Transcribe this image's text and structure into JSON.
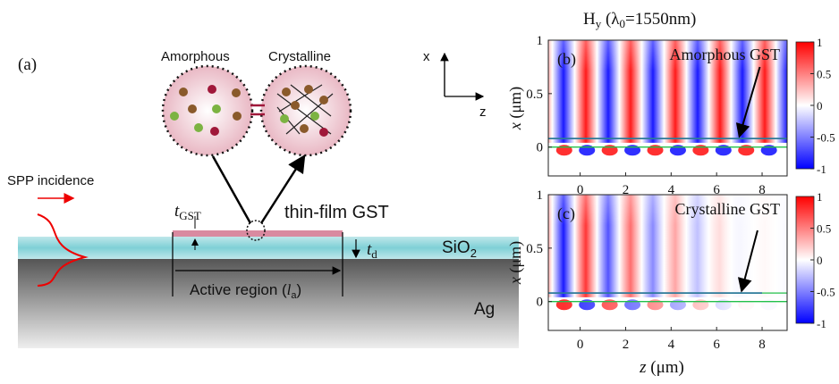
{
  "schematic": {
    "panel_label": "(a)",
    "amorphous": "Amorphous",
    "crystalline": "Crystalline",
    "axis_x": "x",
    "axis_z": "z",
    "spp": "SPP incidence",
    "t_gst": "t",
    "t_gst_sub": "GST",
    "thin_film": "thin-film GST",
    "t_d": "t",
    "t_d_sub": "d",
    "sio2": "SiO",
    "sio2_sub": "2",
    "active": "Active region (",
    "active_l": "l",
    "active_sub": "a",
    "active_close": ")",
    "ag": "Ag"
  },
  "field": {
    "title_h": "H",
    "title_h_sub": "y",
    "title_rest": " (λ",
    "title_sub": "0",
    "title_end": "=1550nm)",
    "xlabel": "z",
    "xlabel_unit": " (μm)",
    "ylabel": "x",
    "ylabel_unit": " (μm)",
    "xlim": [
      -1.4,
      9.1
    ],
    "xticks": [
      0,
      2,
      4,
      6,
      8
    ],
    "ylim": [
      -0.27,
      1
    ],
    "yticks": [
      0,
      0.5,
      1
    ],
    "colorbar_lim": [
      -1,
      1
    ],
    "colorbar_ticks": [
      1,
      0.5,
      0,
      -0.5,
      -1
    ],
    "plots": [
      {
        "panel_label": "(b)",
        "annotation": "Amorphous GST"
      },
      {
        "panel_label": "(c)",
        "annotation": "Crystalline GST"
      }
    ]
  }
}
